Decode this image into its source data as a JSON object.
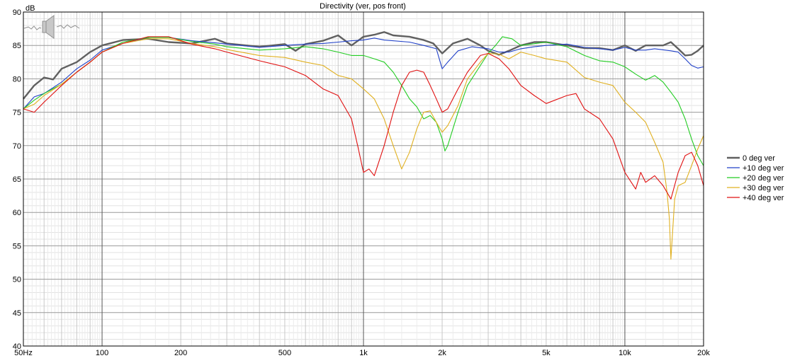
{
  "chart_data": {
    "type": "line",
    "title": "Directivity (ver, pos front)",
    "ylabel": "dB",
    "xlabel": "",
    "x_scale": "log",
    "xlim": [
      50,
      20000
    ],
    "ylim": [
      40,
      90
    ],
    "y_ticks": [
      40,
      45,
      50,
      55,
      60,
      65,
      70,
      75,
      80,
      85,
      90
    ],
    "x_ticks": [
      {
        "value": 50,
        "label": "50Hz"
      },
      {
        "value": 100,
        "label": "100"
      },
      {
        "value": 200,
        "label": "200"
      },
      {
        "value": 500,
        "label": "500"
      },
      {
        "value": 1000,
        "label": "1k"
      },
      {
        "value": 2000,
        "label": "2k"
      },
      {
        "value": 5000,
        "label": "5k"
      },
      {
        "value": 10000,
        "label": "10k"
      },
      {
        "value": 20000,
        "label": "20k"
      }
    ],
    "grid": true,
    "legend_position": "right",
    "series": [
      {
        "name": "0 deg ver",
        "color": "#606060",
        "points": [
          [
            50,
            77
          ],
          [
            55,
            79
          ],
          [
            60,
            80.2
          ],
          [
            65,
            79.9
          ],
          [
            70,
            81.5
          ],
          [
            80,
            82.5
          ],
          [
            90,
            84
          ],
          [
            100,
            85
          ],
          [
            120,
            85.8
          ],
          [
            150,
            86
          ],
          [
            180,
            85.5
          ],
          [
            220,
            85.3
          ],
          [
            270,
            86
          ],
          [
            300,
            85.3
          ],
          [
            400,
            84.8
          ],
          [
            500,
            85.2
          ],
          [
            550,
            84.2
          ],
          [
            600,
            85.2
          ],
          [
            700,
            85.7
          ],
          [
            800,
            86.5
          ],
          [
            900,
            85
          ],
          [
            1000,
            86.3
          ],
          [
            1100,
            86.6
          ],
          [
            1200,
            87
          ],
          [
            1300,
            86.5
          ],
          [
            1500,
            86.3
          ],
          [
            1700,
            85.8
          ],
          [
            1850,
            85.3
          ],
          [
            2000,
            83.8
          ],
          [
            2200,
            85.3
          ],
          [
            2500,
            86
          ],
          [
            2800,
            85
          ],
          [
            3000,
            84.2
          ],
          [
            3300,
            83.6
          ],
          [
            3600,
            84.2
          ],
          [
            4000,
            85
          ],
          [
            4500,
            85.5
          ],
          [
            5000,
            85.5
          ],
          [
            6000,
            85
          ],
          [
            7000,
            84.6
          ],
          [
            8000,
            84.6
          ],
          [
            9000,
            84.3
          ],
          [
            10000,
            85
          ],
          [
            11000,
            84.2
          ],
          [
            12000,
            85
          ],
          [
            13000,
            85
          ],
          [
            14000,
            85
          ],
          [
            15000,
            85.5
          ],
          [
            16000,
            84.5
          ],
          [
            17000,
            83.5
          ],
          [
            18000,
            83.6
          ],
          [
            19000,
            84.2
          ],
          [
            20000,
            85
          ]
        ]
      },
      {
        "name": "+10 deg ver",
        "color": "#2040c8",
        "points": [
          [
            50,
            75.5
          ],
          [
            55,
            77.3
          ],
          [
            60,
            77.8
          ],
          [
            70,
            79.5
          ],
          [
            80,
            81.5
          ],
          [
            90,
            82.8
          ],
          [
            100,
            84.3
          ],
          [
            120,
            85.3
          ],
          [
            150,
            86.2
          ],
          [
            180,
            86.2
          ],
          [
            220,
            85.7
          ],
          [
            270,
            85.4
          ],
          [
            300,
            85.2
          ],
          [
            400,
            84.7
          ],
          [
            500,
            85
          ],
          [
            600,
            85.2
          ],
          [
            700,
            85.3
          ],
          [
            800,
            85.5
          ],
          [
            900,
            85.7
          ],
          [
            1000,
            85.8
          ],
          [
            1100,
            86.1
          ],
          [
            1200,
            85.8
          ],
          [
            1500,
            85.5
          ],
          [
            1700,
            85
          ],
          [
            1900,
            84.5
          ],
          [
            2000,
            81.5
          ],
          [
            2100,
            82.5
          ],
          [
            2300,
            84.2
          ],
          [
            2600,
            84.8
          ],
          [
            3000,
            84.5
          ],
          [
            3300,
            84
          ],
          [
            3600,
            84
          ],
          [
            4000,
            84.5
          ],
          [
            4500,
            84.8
          ],
          [
            5000,
            85
          ],
          [
            6000,
            85.2
          ],
          [
            7000,
            84.7
          ],
          [
            8000,
            84.5
          ],
          [
            9000,
            84.3
          ],
          [
            10000,
            84.7
          ],
          [
            11000,
            84.3
          ],
          [
            12000,
            84.3
          ],
          [
            13000,
            84.5
          ],
          [
            15000,
            84.2
          ],
          [
            16000,
            84
          ],
          [
            17000,
            83
          ],
          [
            18000,
            82
          ],
          [
            19000,
            81.6
          ],
          [
            20000,
            81.8
          ]
        ]
      },
      {
        "name": "+20 deg ver",
        "color": "#22cc22",
        "points": [
          [
            50,
            75.5
          ],
          [
            55,
            76.8
          ],
          [
            60,
            77.8
          ],
          [
            70,
            79.2
          ],
          [
            80,
            81
          ],
          [
            90,
            82.5
          ],
          [
            100,
            84
          ],
          [
            120,
            85.5
          ],
          [
            150,
            86.2
          ],
          [
            180,
            86.2
          ],
          [
            220,
            85.6
          ],
          [
            270,
            85.2
          ],
          [
            300,
            84.8
          ],
          [
            400,
            84.3
          ],
          [
            500,
            84.5
          ],
          [
            600,
            84.8
          ],
          [
            700,
            84.5
          ],
          [
            800,
            84
          ],
          [
            900,
            83.5
          ],
          [
            1000,
            83.5
          ],
          [
            1100,
            83
          ],
          [
            1200,
            82.5
          ],
          [
            1300,
            81
          ],
          [
            1400,
            79
          ],
          [
            1500,
            77
          ],
          [
            1600,
            75.8
          ],
          [
            1700,
            74
          ],
          [
            1800,
            74.5
          ],
          [
            1900,
            73.5
          ],
          [
            2000,
            71
          ],
          [
            2050,
            69.2
          ],
          [
            2100,
            70
          ],
          [
            2300,
            75
          ],
          [
            2500,
            79
          ],
          [
            2800,
            82
          ],
          [
            3000,
            83.8
          ],
          [
            3200,
            85
          ],
          [
            3400,
            86.3
          ],
          [
            3700,
            86
          ],
          [
            4000,
            85
          ],
          [
            5000,
            85.5
          ],
          [
            6000,
            84.8
          ],
          [
            7000,
            83.5
          ],
          [
            8000,
            82.7
          ],
          [
            9000,
            82.5
          ],
          [
            10000,
            81.8
          ],
          [
            11000,
            80.7
          ],
          [
            12000,
            79.8
          ],
          [
            13000,
            80.5
          ],
          [
            14000,
            79.5
          ],
          [
            15000,
            78
          ],
          [
            16000,
            76.5
          ],
          [
            17000,
            74
          ],
          [
            18000,
            71
          ],
          [
            19000,
            68.5
          ],
          [
            20000,
            67
          ]
        ]
      },
      {
        "name": "+30 deg ver",
        "color": "#e0b020",
        "points": [
          [
            50,
            75.5
          ],
          [
            55,
            76.2
          ],
          [
            60,
            77.5
          ],
          [
            70,
            79.2
          ],
          [
            80,
            81
          ],
          [
            90,
            82.5
          ],
          [
            100,
            84
          ],
          [
            120,
            85.3
          ],
          [
            150,
            86
          ],
          [
            180,
            86
          ],
          [
            220,
            85.3
          ],
          [
            270,
            84.8
          ],
          [
            300,
            84.4
          ],
          [
            400,
            83.5
          ],
          [
            500,
            83.2
          ],
          [
            600,
            82.5
          ],
          [
            700,
            82
          ],
          [
            800,
            80.5
          ],
          [
            900,
            80
          ],
          [
            1000,
            78.5
          ],
          [
            1100,
            77
          ],
          [
            1200,
            74
          ],
          [
            1300,
            70
          ],
          [
            1400,
            66.5
          ],
          [
            1500,
            69
          ],
          [
            1600,
            72.5
          ],
          [
            1700,
            75
          ],
          [
            1800,
            75.2
          ],
          [
            1900,
            73.5
          ],
          [
            2000,
            72
          ],
          [
            2100,
            73
          ],
          [
            2300,
            76
          ],
          [
            2500,
            80
          ],
          [
            2800,
            82.5
          ],
          [
            3000,
            83.8
          ],
          [
            3300,
            83.7
          ],
          [
            3600,
            83
          ],
          [
            4000,
            84
          ],
          [
            4500,
            83.5
          ],
          [
            5000,
            83
          ],
          [
            6000,
            82.5
          ],
          [
            7000,
            80.2
          ],
          [
            8000,
            79.5
          ],
          [
            9000,
            79
          ],
          [
            10000,
            76.5
          ],
          [
            11000,
            75
          ],
          [
            12000,
            73.5
          ],
          [
            13000,
            70.5
          ],
          [
            14000,
            67.5
          ],
          [
            14500,
            63
          ],
          [
            14800,
            59
          ],
          [
            15000,
            53
          ],
          [
            15500,
            62
          ],
          [
            16000,
            64
          ],
          [
            17000,
            64.5
          ],
          [
            18000,
            67
          ],
          [
            19000,
            69.5
          ],
          [
            20000,
            71.5
          ]
        ]
      },
      {
        "name": "+40 deg ver",
        "color": "#e01010",
        "points": [
          [
            50,
            75.5
          ],
          [
            55,
            75
          ],
          [
            60,
            76.5
          ],
          [
            70,
            79
          ],
          [
            80,
            81
          ],
          [
            90,
            82.5
          ],
          [
            100,
            84
          ],
          [
            120,
            85.3
          ],
          [
            150,
            86.3
          ],
          [
            180,
            86.3
          ],
          [
            220,
            85.2
          ],
          [
            270,
            84.5
          ],
          [
            300,
            84
          ],
          [
            400,
            82.7
          ],
          [
            500,
            81.8
          ],
          [
            600,
            80.5
          ],
          [
            700,
            78.5
          ],
          [
            800,
            77.5
          ],
          [
            900,
            74
          ],
          [
            950,
            70
          ],
          [
            1000,
            66
          ],
          [
            1050,
            66.5
          ],
          [
            1100,
            65.5
          ],
          [
            1200,
            70
          ],
          [
            1300,
            75
          ],
          [
            1400,
            79
          ],
          [
            1500,
            81
          ],
          [
            1600,
            81.3
          ],
          [
            1700,
            81
          ],
          [
            1800,
            79
          ],
          [
            1900,
            77
          ],
          [
            2000,
            75
          ],
          [
            2100,
            75.5
          ],
          [
            2300,
            78.5
          ],
          [
            2500,
            81
          ],
          [
            2800,
            83.5
          ],
          [
            3000,
            83.8
          ],
          [
            3300,
            83
          ],
          [
            3600,
            81.5
          ],
          [
            4000,
            79
          ],
          [
            4500,
            77.5
          ],
          [
            5000,
            76.3
          ],
          [
            6000,
            77.5
          ],
          [
            6500,
            77.8
          ],
          [
            7000,
            75.5
          ],
          [
            8000,
            74
          ],
          [
            9000,
            71
          ],
          [
            10000,
            66
          ],
          [
            11000,
            63.5
          ],
          [
            11500,
            66
          ],
          [
            12000,
            64.5
          ],
          [
            13000,
            65.5
          ],
          [
            14000,
            64
          ],
          [
            15000,
            62
          ],
          [
            16000,
            66
          ],
          [
            17000,
            68.5
          ],
          [
            18000,
            69
          ],
          [
            19000,
            67
          ],
          [
            20000,
            64
          ]
        ]
      }
    ]
  }
}
